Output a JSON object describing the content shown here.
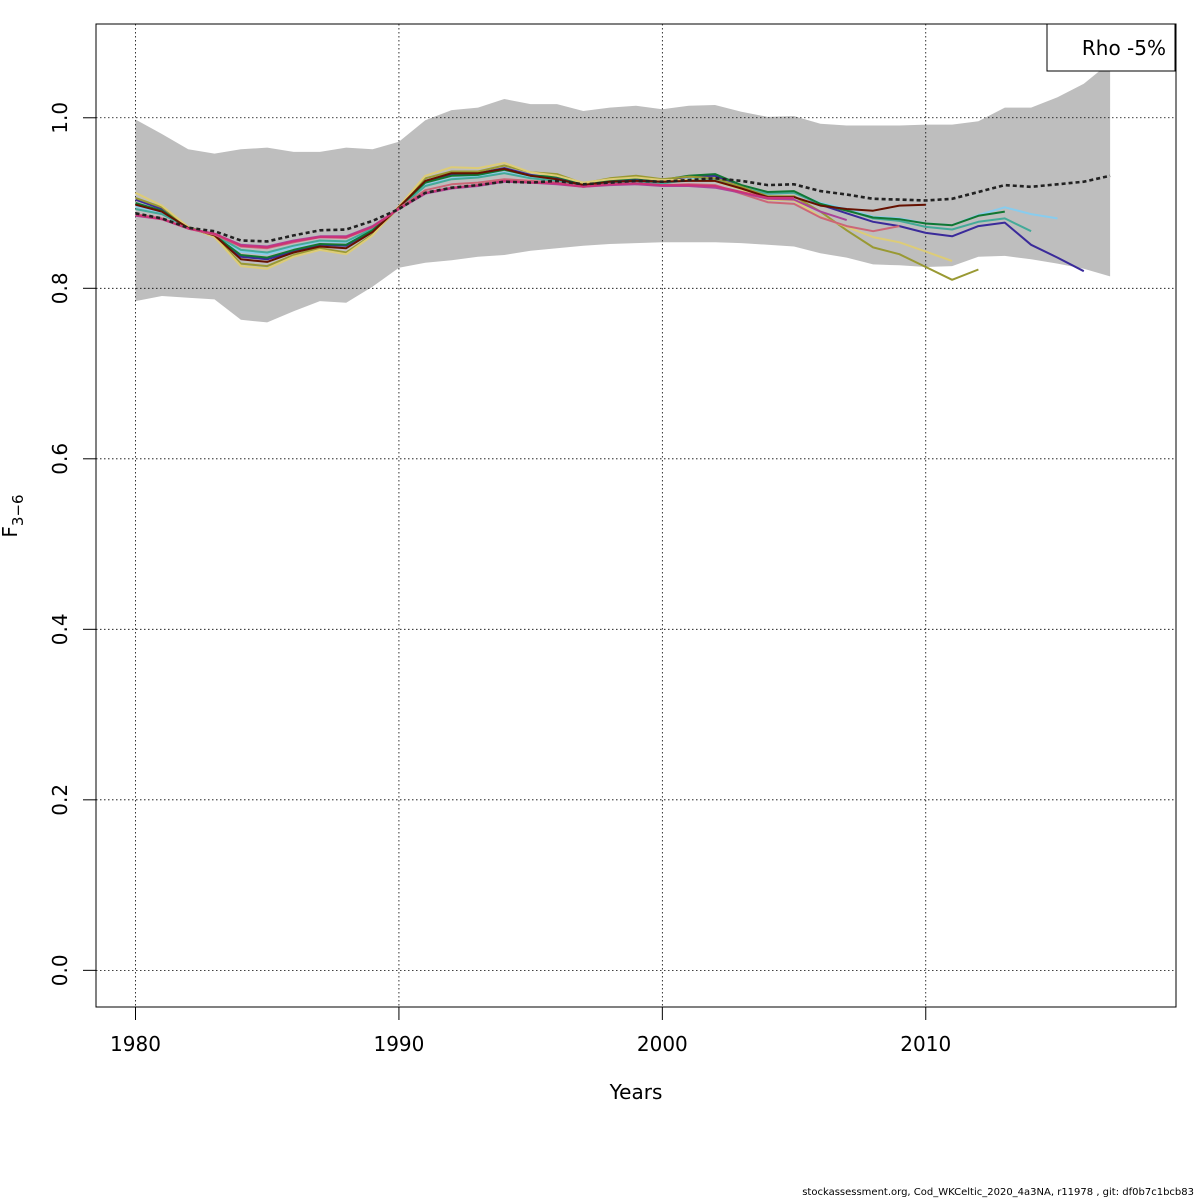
{
  "footer": "stockassessment.org, Cod_WKCeltic_2020_4a3NA, r11978 , git: df0b7c1bcb83",
  "chart_data": {
    "type": "line",
    "title": "",
    "xlabel": "Years",
    "ylabel_main": "F",
    "ylabel_subscript": "3−6",
    "xlim": [
      1978.5,
      2019.5
    ],
    "ylim": [
      -0.043,
      1.11
    ],
    "x_ticks": [
      1980,
      1990,
      2000,
      2010
    ],
    "y_ticks": [
      0.0,
      0.2,
      0.4,
      0.6,
      0.8,
      1.0
    ],
    "x_tick_labels": [
      "1980",
      "1990",
      "2000",
      "2010"
    ],
    "y_tick_labels": [
      "0.0",
      "0.2",
      "0.4",
      "0.6",
      "0.8",
      "1.0"
    ],
    "grid": true,
    "legend_placement": "top-right",
    "legend": [
      "Rho -5%"
    ],
    "confidence_band": {
      "color": "#bebebe",
      "x": [
        1980,
        1981,
        1982,
        1983,
        1984,
        1985,
        1986,
        1987,
        1988,
        1989,
        1990,
        1991,
        1992,
        1993,
        1994,
        1995,
        1996,
        1997,
        1998,
        1999,
        2000,
        2001,
        2002,
        2003,
        2004,
        2005,
        2006,
        2007,
        2008,
        2009,
        2010,
        2011,
        2012,
        2013,
        2014,
        2015,
        2016,
        2017
      ],
      "upper": [
        0.998,
        0.981,
        0.963,
        0.958,
        0.963,
        0.965,
        0.96,
        0.96,
        0.965,
        0.963,
        0.972,
        0.997,
        1.009,
        1.012,
        1.022,
        1.016,
        1.016,
        1.008,
        1.012,
        1.014,
        1.01,
        1.014,
        1.015,
        1.007,
        1.001,
        1.002,
        0.993,
        0.991,
        0.991,
        0.991,
        0.992,
        0.992,
        0.996,
        1.012,
        1.012,
        1.024,
        1.04,
        1.065
      ],
      "lower": [
        0.785,
        0.791,
        0.789,
        0.787,
        0.763,
        0.76,
        0.773,
        0.785,
        0.783,
        0.802,
        0.824,
        0.83,
        0.833,
        0.837,
        0.839,
        0.844,
        0.847,
        0.85,
        0.852,
        0.853,
        0.854,
        0.854,
        0.854,
        0.853,
        0.851,
        0.849,
        0.841,
        0.836,
        0.828,
        0.827,
        0.825,
        0.826,
        0.837,
        0.838,
        0.834,
        0.829,
        0.823,
        0.814
      ]
    },
    "base_run": {
      "color": "#222222",
      "dashed": true,
      "x": [
        1980,
        1981,
        1982,
        1983,
        1984,
        1985,
        1986,
        1987,
        1988,
        1989,
        1990,
        1991,
        1992,
        1993,
        1994,
        1995,
        1996,
        1997,
        1998,
        1999,
        2000,
        2001,
        2002,
        2003,
        2004,
        2005,
        2006,
        2007,
        2008,
        2009,
        2010,
        2011,
        2012,
        2013,
        2014,
        2015,
        2016,
        2017
      ],
      "values": [
        0.888,
        0.882,
        0.871,
        0.867,
        0.856,
        0.855,
        0.862,
        0.868,
        0.869,
        0.879,
        0.893,
        0.912,
        0.918,
        0.921,
        0.925,
        0.924,
        0.926,
        0.922,
        0.924,
        0.926,
        0.925,
        0.927,
        0.929,
        0.926,
        0.921,
        0.922,
        0.914,
        0.91,
        0.905,
        0.904,
        0.903,
        0.905,
        0.913,
        0.921,
        0.919,
        0.922,
        0.925,
        0.932
      ]
    },
    "series": [
      {
        "color": "#3a2a9a",
        "values": [
          0.904,
          0.893,
          0.872,
          0.861,
          0.837,
          0.834,
          0.843,
          0.851,
          0.85,
          0.868,
          0.895,
          0.926,
          0.934,
          0.935,
          0.941,
          0.933,
          0.929,
          0.922,
          0.926,
          0.927,
          0.926,
          0.931,
          0.932,
          0.92,
          0.912,
          0.913,
          0.898,
          0.888,
          0.878,
          0.873,
          0.865,
          0.861,
          0.873,
          0.877,
          0.851,
          0.836,
          0.82
        ]
      },
      {
        "color": "#88ccee",
        "values": [
          0.896,
          0.889,
          0.871,
          0.862,
          0.843,
          0.84,
          0.848,
          0.855,
          0.854,
          0.869,
          0.894,
          0.921,
          0.929,
          0.931,
          0.936,
          0.93,
          0.927,
          0.921,
          0.924,
          0.925,
          0.924,
          0.928,
          0.929,
          0.919,
          0.912,
          0.913,
          0.9,
          0.893,
          0.884,
          0.882,
          0.876,
          0.874,
          0.886,
          0.895,
          0.887,
          0.882
        ]
      },
      {
        "color": "#44aa99",
        "values": [
          0.893,
          0.887,
          0.871,
          0.863,
          0.845,
          0.842,
          0.85,
          0.856,
          0.855,
          0.87,
          0.894,
          0.92,
          0.928,
          0.93,
          0.935,
          0.929,
          0.926,
          0.92,
          0.923,
          0.924,
          0.923,
          0.927,
          0.928,
          0.918,
          0.911,
          0.912,
          0.899,
          0.892,
          0.882,
          0.879,
          0.872,
          0.869,
          0.878,
          0.882,
          0.867
        ]
      },
      {
        "color": "#117733",
        "values": [
          0.9,
          0.891,
          0.872,
          0.862,
          0.839,
          0.836,
          0.845,
          0.852,
          0.851,
          0.868,
          0.895,
          0.924,
          0.932,
          0.933,
          0.939,
          0.932,
          0.931,
          0.923,
          0.927,
          0.929,
          0.927,
          0.932,
          0.934,
          0.921,
          0.913,
          0.914,
          0.899,
          0.891,
          0.883,
          0.881,
          0.876,
          0.874,
          0.885,
          0.89
        ]
      },
      {
        "color": "#999933",
        "values": [
          0.906,
          0.895,
          0.872,
          0.861,
          0.829,
          0.826,
          0.839,
          0.847,
          0.842,
          0.863,
          0.895,
          0.929,
          0.937,
          0.937,
          0.944,
          0.936,
          0.934,
          0.923,
          0.929,
          0.932,
          0.928,
          0.931,
          0.929,
          0.919,
          0.908,
          0.908,
          0.89,
          0.868,
          0.848,
          0.84,
          0.825,
          0.81,
          0.822
        ]
      },
      {
        "color": "#ddcc77",
        "values": [
          0.912,
          0.897,
          0.872,
          0.86,
          0.826,
          0.823,
          0.837,
          0.845,
          0.84,
          0.862,
          0.896,
          0.932,
          0.942,
          0.941,
          0.947,
          0.936,
          0.932,
          0.924,
          0.928,
          0.93,
          0.927,
          0.927,
          0.926,
          0.916,
          0.904,
          0.903,
          0.884,
          0.872,
          0.86,
          0.854,
          0.843,
          0.832
        ]
      },
      {
        "color": "#661100",
        "values": [
          0.898,
          0.89,
          0.871,
          0.862,
          0.834,
          0.831,
          0.842,
          0.849,
          0.847,
          0.866,
          0.895,
          0.926,
          0.935,
          0.935,
          0.94,
          0.932,
          0.928,
          0.921,
          0.925,
          0.926,
          0.925,
          0.926,
          0.926,
          0.917,
          0.907,
          0.907,
          0.897,
          0.893,
          0.891,
          0.897,
          0.898
        ]
      },
      {
        "color": "#cc6677",
        "values": [
          0.887,
          0.882,
          0.87,
          0.863,
          0.849,
          0.847,
          0.854,
          0.86,
          0.859,
          0.872,
          0.894,
          0.915,
          0.922,
          0.924,
          0.928,
          0.926,
          0.924,
          0.919,
          0.922,
          0.923,
          0.921,
          0.922,
          0.921,
          0.911,
          0.901,
          0.899,
          0.883,
          0.873,
          0.867,
          0.873
        ]
      },
      {
        "color": "#aa4499",
        "values": [
          0.885,
          0.881,
          0.87,
          0.864,
          0.851,
          0.849,
          0.856,
          0.861,
          0.861,
          0.873,
          0.893,
          0.911,
          0.917,
          0.92,
          0.925,
          0.924,
          0.922,
          0.919,
          0.921,
          0.922,
          0.92,
          0.92,
          0.918,
          0.912,
          0.905,
          0.904,
          0.89,
          0.88
        ]
      },
      {
        "color": "#cc3377",
        "values": [
          0.886,
          0.881,
          0.87,
          0.864,
          0.85,
          0.848,
          0.855,
          0.86,
          0.86,
          0.872,
          0.893,
          0.912,
          0.918,
          0.921,
          0.926,
          0.924,
          0.923,
          0.919,
          0.922,
          0.923,
          0.921,
          0.921,
          0.92,
          0.913,
          0.906,
          0.906
        ]
      }
    ]
  }
}
